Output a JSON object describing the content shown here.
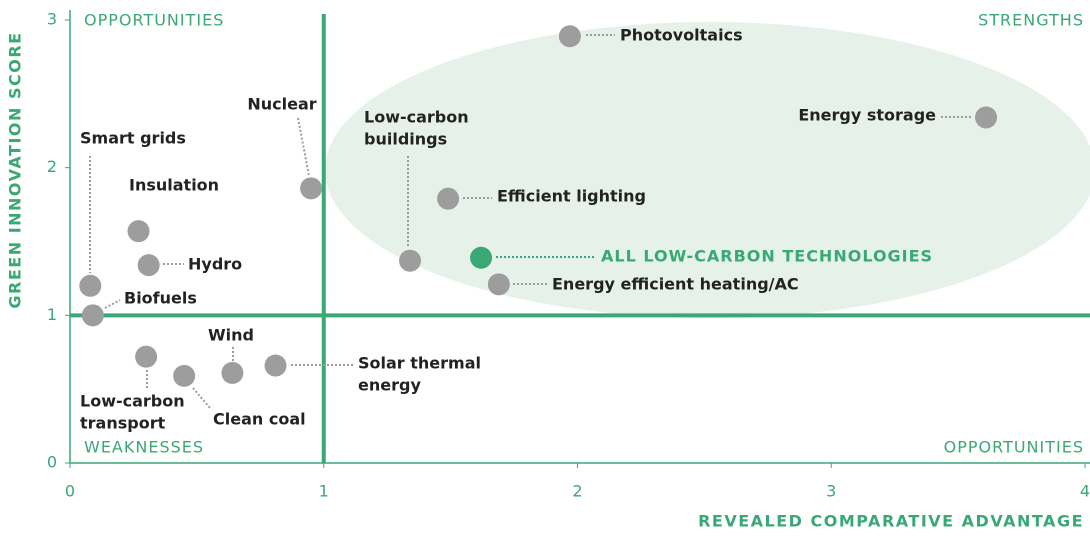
{
  "chart_data": {
    "type": "scatter",
    "x_label": "REVEALED COMPARATIVE ADVANTAGE",
    "y_label": "GREEN INNOVATION SCORE",
    "xlim": [
      0,
      4
    ],
    "ylim": [
      0,
      3
    ],
    "xticks": [
      0,
      1,
      2,
      3,
      4
    ],
    "yticks": [
      0,
      1,
      2,
      3
    ],
    "reference_x": 1,
    "reference_y": 1,
    "quadrants": [
      "OPPORTUNITIES",
      "STRENGTHS",
      "WEAKNESSES",
      "OPPORTUNITIES"
    ],
    "color": "#9d9d9d",
    "highlight_color": "#3aa876",
    "points": [
      {
        "label": [
          "Photovoltaics"
        ],
        "x": 1.97,
        "y": 2.89
      },
      {
        "label": [
          "Energy storage"
        ],
        "x": 3.61,
        "y": 2.34
      },
      {
        "label": [
          "Nuclear"
        ],
        "x": 0.95,
        "y": 1.86
      },
      {
        "label": [
          "Efficient lighting"
        ],
        "x": 1.49,
        "y": 1.79
      },
      {
        "label": [
          "Low-carbon",
          "buildings"
        ],
        "x": 1.34,
        "y": 1.37
      },
      {
        "label": [
          "ALL LOW-CARBON TECHNOLOGIES"
        ],
        "x": 1.62,
        "y": 1.39,
        "highlight": true
      },
      {
        "label": [
          "Energy efficient heating/AC"
        ],
        "x": 1.69,
        "y": 1.21
      },
      {
        "label": [
          "Insulation"
        ],
        "x": 0.27,
        "y": 1.57
      },
      {
        "label": [
          "Hydro"
        ],
        "x": 0.31,
        "y": 1.34
      },
      {
        "label": [
          "Smart grids"
        ],
        "x": 0.08,
        "y": 1.2
      },
      {
        "label": [
          "Biofuels"
        ],
        "x": 0.09,
        "y": 1.0
      },
      {
        "label": [
          "Low-carbon",
          "transport"
        ],
        "x": 0.3,
        "y": 0.72
      },
      {
        "label": [
          "Clean coal"
        ],
        "x": 0.45,
        "y": 0.59
      },
      {
        "label": [
          "Wind"
        ],
        "x": 0.64,
        "y": 0.61
      },
      {
        "label": [
          "Solar thermal",
          "energy"
        ],
        "x": 0.81,
        "y": 0.66
      }
    ]
  }
}
